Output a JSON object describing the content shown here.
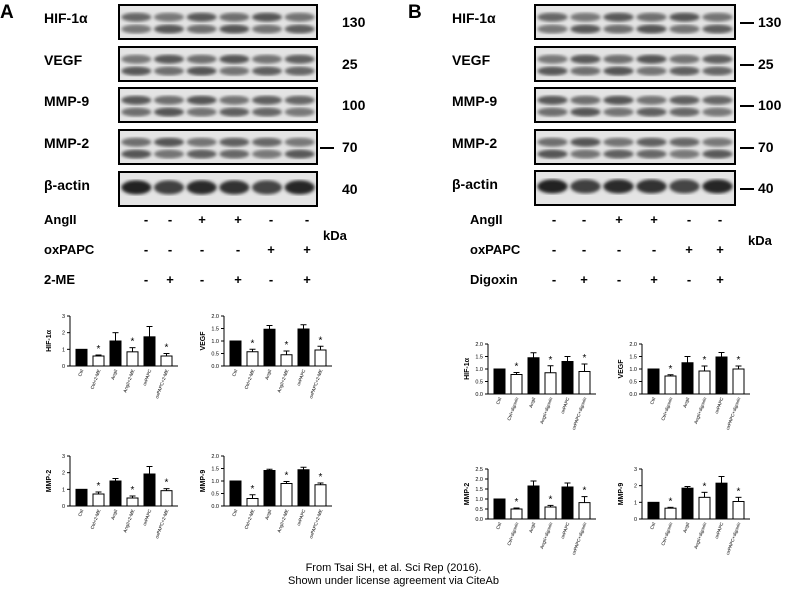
{
  "credit": {
    "line1": "From Tsai SH, et al. Sci Rep (2016).",
    "line2": "Shown under license agreement via CiteAb"
  },
  "panels": [
    {
      "id": "A",
      "letter": "A",
      "blots": [
        {
          "label": "HIF-1α",
          "kda": "130",
          "tick": false
        },
        {
          "label": "VEGF",
          "kda": "25",
          "tick": false
        },
        {
          "label": "MMP-9",
          "kda": "100",
          "tick": false
        },
        {
          "label": "MMP-2",
          "kda": "70",
          "tick": true
        },
        {
          "label": "β-actin",
          "kda": "40",
          "tick": false
        }
      ],
      "kda_unit": "kDa",
      "conditions": [
        {
          "label": "AngII",
          "signs": [
            "-",
            "-",
            "+",
            "+",
            "-",
            "-"
          ]
        },
        {
          "label": "oxPAPC",
          "signs": [
            "-",
            "-",
            "-",
            "-",
            "+",
            "+"
          ]
        },
        {
          "label": "2-ME",
          "signs": [
            "-",
            "+",
            "-",
            "+",
            "-",
            "+"
          ]
        }
      ]
    },
    {
      "id": "B",
      "letter": "B",
      "blots": [
        {
          "label": "HIF-1α",
          "kda": "130",
          "tick": true
        },
        {
          "label": "VEGF",
          "kda": "25",
          "tick": true
        },
        {
          "label": "MMP-9",
          "kda": "100",
          "tick": true
        },
        {
          "label": "MMP-2",
          "kda": "70",
          "tick": true
        },
        {
          "label": "β-actin",
          "kda": "40",
          "tick": true
        }
      ],
      "kda_unit": "kDa",
      "conditions": [
        {
          "label": "AngII",
          "signs": [
            "-",
            "-",
            "+",
            "+",
            "-",
            "-"
          ]
        },
        {
          "label": "oxPAPC",
          "signs": [
            "-",
            "-",
            "-",
            "-",
            "+",
            "+"
          ]
        },
        {
          "label": "Digoxin",
          "signs": [
            "-",
            "+",
            "-",
            "+",
            "-",
            "+"
          ]
        }
      ]
    }
  ],
  "chart_data": [
    {
      "type": "bar",
      "panel": "A",
      "ylabel": "HIF-1α",
      "categories": [
        "Ctrl",
        "Ctrl+2-ME",
        "AngII",
        "AngII+2-ME",
        "oxPAPC",
        "oxPAPC+2-ME"
      ],
      "values": [
        1.0,
        0.6,
        1.5,
        0.85,
        1.75,
        0.6
      ],
      "errors": [
        0.0,
        0.06,
        0.5,
        0.25,
        0.62,
        0.15
      ],
      "fills": [
        "#000000",
        "#ffffff",
        "#000000",
        "#ffffff",
        "#000000",
        "#ffffff"
      ],
      "significant": [
        false,
        true,
        false,
        true,
        false,
        true
      ],
      "yticks": [
        "0",
        "1",
        "2",
        "3"
      ],
      "ylim": [
        0,
        3
      ]
    },
    {
      "type": "bar",
      "panel": "A",
      "ylabel": "VEGF",
      "categories": [
        "Ctrl",
        "Ctrl+2-ME",
        "AngII",
        "AngII+2-ME",
        "oxPAPC",
        "oxPAPC+2-ME"
      ],
      "values": [
        1.0,
        0.57,
        1.47,
        0.45,
        1.48,
        0.64
      ],
      "errors": [
        0.0,
        0.1,
        0.15,
        0.15,
        0.17,
        0.15
      ],
      "fills": [
        "#000000",
        "#ffffff",
        "#000000",
        "#ffffff",
        "#000000",
        "#ffffff"
      ],
      "significant": [
        false,
        true,
        false,
        true,
        false,
        true
      ],
      "yticks": [
        "0.0",
        "0.5",
        "1.0",
        "1.5",
        "2.0"
      ],
      "ylim": [
        0,
        2
      ]
    },
    {
      "type": "bar",
      "panel": "A",
      "ylabel": "MMP-2",
      "categories": [
        "Ctrl",
        "Ctrl+2-ME",
        "AngII",
        "AngII+2-ME",
        "oxPAPC",
        "oxPAPC+2-ME"
      ],
      "values": [
        1.0,
        0.72,
        1.5,
        0.48,
        1.92,
        0.92
      ],
      "errors": [
        0.0,
        0.12,
        0.15,
        0.12,
        0.45,
        0.12
      ],
      "fills": [
        "#000000",
        "#ffffff",
        "#000000",
        "#ffffff",
        "#000000",
        "#ffffff"
      ],
      "significant": [
        false,
        true,
        false,
        true,
        false,
        true
      ],
      "yticks": [
        "0",
        "1",
        "2",
        "3"
      ],
      "ylim": [
        0,
        3
      ]
    },
    {
      "type": "bar",
      "panel": "A",
      "ylabel": "MMP-9",
      "categories": [
        "Ctrl",
        "Ctrl+2-ME",
        "AngII",
        "AngII+2-ME",
        "oxPAPC",
        "oxPAPC+2-ME"
      ],
      "values": [
        1.0,
        0.3,
        1.42,
        0.9,
        1.45,
        0.85
      ],
      "errors": [
        0.0,
        0.15,
        0.05,
        0.08,
        0.1,
        0.07
      ],
      "fills": [
        "#000000",
        "#ffffff",
        "#000000",
        "#ffffff",
        "#000000",
        "#ffffff"
      ],
      "significant": [
        false,
        true,
        false,
        true,
        false,
        true
      ],
      "yticks": [
        "0.0",
        "0.5",
        "1.0",
        "1.5",
        "2.0"
      ],
      "ylim": [
        0,
        2
      ]
    },
    {
      "type": "bar",
      "panel": "B",
      "ylabel": "HIF-1α",
      "categories": [
        "Ctrl",
        "Ctrl+digoxin",
        "AngII",
        "AngII+digoxin",
        "oxPAPC",
        "oxPAPC+digoxin"
      ],
      "values": [
        1.0,
        0.78,
        1.45,
        0.85,
        1.3,
        0.9
      ],
      "errors": [
        0.0,
        0.08,
        0.2,
        0.28,
        0.2,
        0.3
      ],
      "fills": [
        "#000000",
        "#ffffff",
        "#000000",
        "#ffffff",
        "#000000",
        "#ffffff"
      ],
      "significant": [
        false,
        true,
        false,
        true,
        false,
        true
      ],
      "yticks": [
        "0.0",
        "0.5",
        "1.0",
        "1.5",
        "2.0"
      ],
      "ylim": [
        0,
        2
      ]
    },
    {
      "type": "bar",
      "panel": "B",
      "ylabel": "VEGF",
      "categories": [
        "Ctrl",
        "Ctrl+digoxin",
        "AngII",
        "AngII+digoxin",
        "oxPAPC",
        "oxPAPC+digoxin"
      ],
      "values": [
        1.0,
        0.72,
        1.25,
        0.92,
        1.48,
        1.0
      ],
      "errors": [
        0.0,
        0.05,
        0.25,
        0.2,
        0.18,
        0.12
      ],
      "fills": [
        "#000000",
        "#ffffff",
        "#000000",
        "#ffffff",
        "#000000",
        "#ffffff"
      ],
      "significant": [
        false,
        true,
        false,
        true,
        false,
        true
      ],
      "yticks": [
        "0.0",
        "0.5",
        "1.0",
        "1.5",
        "2.0"
      ],
      "ylim": [
        0,
        2
      ]
    },
    {
      "type": "bar",
      "panel": "B",
      "ylabel": "MMP-2",
      "categories": [
        "Ctrl",
        "Ctrl+digoxin",
        "AngII",
        "AngII+digoxin",
        "oxPAPC",
        "oxPAPC+digoxin"
      ],
      "values": [
        1.0,
        0.5,
        1.65,
        0.6,
        1.6,
        0.82
      ],
      "errors": [
        0.0,
        0.05,
        0.25,
        0.08,
        0.2,
        0.3
      ],
      "fills": [
        "#000000",
        "#ffffff",
        "#000000",
        "#ffffff",
        "#000000",
        "#ffffff"
      ],
      "significant": [
        false,
        true,
        false,
        true,
        false,
        true
      ],
      "yticks": [
        "0.0",
        "0.5",
        "1.0",
        "1.5",
        "2.0",
        "2.5"
      ],
      "ylim": [
        0,
        2.5
      ]
    },
    {
      "type": "bar",
      "panel": "B",
      "ylabel": "MMP-9",
      "categories": [
        "Ctrl",
        "Ctrl+digoxin",
        "AngII",
        "AngII+digoxin",
        "oxPAPC",
        "oxPAPC+digoxin"
      ],
      "values": [
        1.0,
        0.65,
        1.85,
        1.3,
        2.15,
        1.05
      ],
      "errors": [
        0.0,
        0.05,
        0.1,
        0.3,
        0.4,
        0.25
      ],
      "fills": [
        "#000000",
        "#ffffff",
        "#000000",
        "#ffffff",
        "#000000",
        "#ffffff"
      ],
      "significant": [
        false,
        true,
        false,
        true,
        false,
        true
      ],
      "yticks": [
        "0",
        "1",
        "2",
        "3"
      ],
      "ylim": [
        0,
        3
      ]
    }
  ]
}
